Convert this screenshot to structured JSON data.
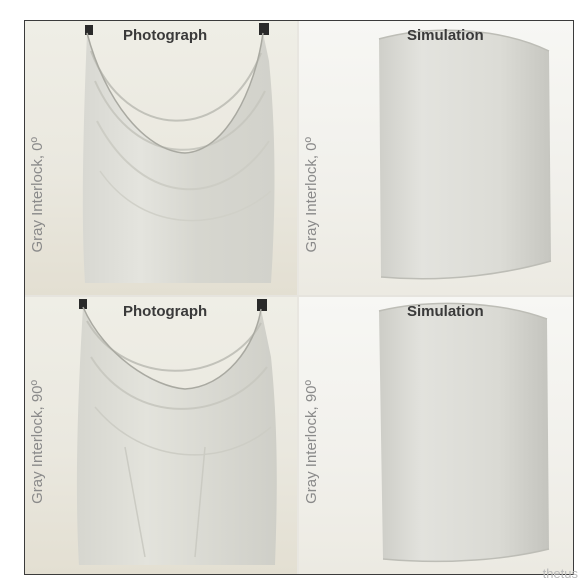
{
  "figure": {
    "rows": [
      {
        "photo_title": "Photograph",
        "sim_title": "Simulation",
        "photo_label": "Gray Interlock, 0º",
        "sim_label": "Gray Interlock, 0º"
      },
      {
        "photo_title": "Photograph",
        "sim_title": "Simulation",
        "photo_label": "Gray Interlock, 90º",
        "sim_label": "Gray Interlock, 90º"
      }
    ]
  },
  "watermark": "thetus",
  "colors": {
    "border": "#3b3b3b",
    "fabric": "#dcdcd6",
    "label": "#8a8a8a"
  }
}
